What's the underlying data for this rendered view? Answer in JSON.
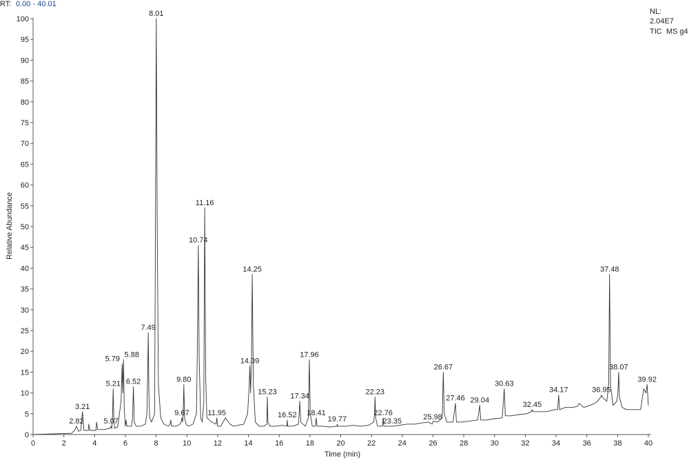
{
  "header": {
    "rt_label": "RT:",
    "rt_range": "0.00 - 40.01",
    "nl_label": "NL:",
    "nl_value": "2.04E7",
    "scan_filter": "TIC  MS g4"
  },
  "chart_data": {
    "type": "line",
    "title": "",
    "xlabel": "Time (min)",
    "ylabel": "Relative Abundance",
    "xlim": [
      0,
      40
    ],
    "ylim": [
      0,
      100
    ],
    "x_ticks": [
      0,
      2,
      4,
      6,
      8,
      10,
      12,
      14,
      16,
      18,
      20,
      22,
      24,
      26,
      28,
      30,
      32,
      34,
      36,
      38,
      40
    ],
    "y_ticks": [
      0,
      5,
      10,
      15,
      20,
      25,
      30,
      35,
      40,
      45,
      50,
      55,
      60,
      65,
      70,
      75,
      80,
      85,
      90,
      95,
      100
    ],
    "x_tick_labels": [
      "0",
      "2",
      "4",
      "6",
      "8",
      "10",
      "12",
      "14",
      "16",
      "18",
      "20",
      "22",
      "24",
      "26",
      "28",
      "30",
      "32",
      "34",
      "36",
      "38",
      "40"
    ],
    "y_tick_labels": [
      "0",
      "5",
      "10",
      "15",
      "20",
      "25",
      "30",
      "35",
      "40",
      "45",
      "50",
      "55",
      "60",
      "65",
      "70",
      "75",
      "80",
      "85",
      "90",
      "95",
      "100"
    ],
    "grid": false,
    "peaks": [
      {
        "rt": 2.82,
        "label": "2.82",
        "height": 2
      },
      {
        "rt": 3.21,
        "label": "3.21",
        "height": 5.5
      },
      {
        "rt": 5.07,
        "label": "5.07",
        "height": 2
      },
      {
        "rt": 5.21,
        "label": "5.21",
        "height": 11
      },
      {
        "rt": 5.79,
        "label": "5.79",
        "height": 17
      },
      {
        "rt": 5.88,
        "label": "5.88",
        "height": 18
      },
      {
        "rt": 6.52,
        "label": "6.52",
        "height": 11.5
      },
      {
        "rt": 7.49,
        "label": "7.49",
        "height": 24.5
      },
      {
        "rt": 8.01,
        "label": "8.01",
        "height": 100
      },
      {
        "rt": 9.67,
        "label": "9.67",
        "height": 4
      },
      {
        "rt": 9.8,
        "label": "9.80",
        "height": 12
      },
      {
        "rt": 10.74,
        "label": "10.74",
        "height": 45.5
      },
      {
        "rt": 11.16,
        "label": "11.16",
        "height": 54.5
      },
      {
        "rt": 11.95,
        "label": "11.95",
        "height": 4
      },
      {
        "rt": 14.09,
        "label": "14.09",
        "height": 16.5
      },
      {
        "rt": 14.25,
        "label": "14.25",
        "height": 38.5
      },
      {
        "rt": 15.23,
        "label": "15.23",
        "height": 9
      },
      {
        "rt": 16.52,
        "label": "16.52",
        "height": 3.5
      },
      {
        "rt": 17.34,
        "label": "17.34",
        "height": 8
      },
      {
        "rt": 17.96,
        "label": "17.96",
        "height": 18
      },
      {
        "rt": 18.41,
        "label": "18.41",
        "height": 4
      },
      {
        "rt": 19.77,
        "label": "19.77",
        "height": 2.5
      },
      {
        "rt": 22.23,
        "label": "22.23",
        "height": 9
      },
      {
        "rt": 22.76,
        "label": "22.76",
        "height": 4
      },
      {
        "rt": 23.35,
        "label": "23.35",
        "height": 2
      },
      {
        "rt": 25.98,
        "label": "25.98",
        "height": 3
      },
      {
        "rt": 26.67,
        "label": "26.67",
        "height": 15
      },
      {
        "rt": 27.46,
        "label": "27.46",
        "height": 7.5
      },
      {
        "rt": 29.04,
        "label": "29.04",
        "height": 7
      },
      {
        "rt": 30.63,
        "label": "30.63",
        "height": 11
      },
      {
        "rt": 32.45,
        "label": "32.45",
        "height": 6
      },
      {
        "rt": 34.17,
        "label": "34.17",
        "height": 9.5
      },
      {
        "rt": 36.95,
        "label": "36.95",
        "height": 9.5
      },
      {
        "rt": 37.48,
        "label": "37.48",
        "height": 38.5
      },
      {
        "rt": 38.07,
        "label": "38.07",
        "height": 15
      },
      {
        "rt": 39.92,
        "label": "39.92",
        "height": 12
      }
    ],
    "series": [
      {
        "x": [
          0,
          2.5,
          2.7,
          2.82,
          2.95,
          3.1,
          3.21,
          3.3,
          3.6,
          3.62,
          3.7,
          4.1,
          4.12,
          4.2,
          4.6,
          5.0,
          5.07,
          5.12,
          5.17,
          5.21,
          5.25,
          5.3,
          5.5,
          5.72,
          5.79,
          5.83,
          5.88,
          5.93,
          6.0,
          6.05,
          6.1,
          6.4,
          6.47,
          6.52,
          6.58,
          6.7,
          7.0,
          7.3,
          7.4,
          7.45,
          7.49,
          7.53,
          7.58,
          7.7,
          7.9,
          7.95,
          8.01,
          8.07,
          8.15,
          8.3,
          8.5,
          8.8,
          8.9,
          8.95,
          9.0,
          9.3,
          9.55,
          9.62,
          9.67,
          9.72,
          9.76,
          9.8,
          9.85,
          9.95,
          10.1,
          10.4,
          10.62,
          10.68,
          10.74,
          10.8,
          10.9,
          11.0,
          11.1,
          11.16,
          11.22,
          11.3,
          11.6,
          11.9,
          11.95,
          12.0,
          12.2,
          12.5,
          12.7,
          12.8,
          13.0,
          13.3,
          13.7,
          13.95,
          14.05,
          14.09,
          14.14,
          14.2,
          14.25,
          14.32,
          14.45,
          14.7,
          15.0,
          15.2,
          15.23,
          15.27,
          15.4,
          15.8,
          16.2,
          16.5,
          16.52,
          16.56,
          16.9,
          17.25,
          17.3,
          17.34,
          17.4,
          17.7,
          17.9,
          17.96,
          18.02,
          18.15,
          18.35,
          18.41,
          18.46,
          18.8,
          19.3,
          19.75,
          19.77,
          19.8,
          20.3,
          20.8,
          21.3,
          21.8,
          22.15,
          22.2,
          22.23,
          22.27,
          22.4,
          22.7,
          22.76,
          22.8,
          23.1,
          23.33,
          23.35,
          23.38,
          23.8,
          24.3,
          24.8,
          25.3,
          25.7,
          25.95,
          25.98,
          26.02,
          26.3,
          26.6,
          26.67,
          26.73,
          26.9,
          27.3,
          27.46,
          27.52,
          27.8,
          28.3,
          28.9,
          29.04,
          29.1,
          29.5,
          30.0,
          30.5,
          30.63,
          30.7,
          31.1,
          31.6,
          32.1,
          32.4,
          32.45,
          32.5,
          32.9,
          33.4,
          33.9,
          34.1,
          34.17,
          34.23,
          34.6,
          35.1,
          35.4,
          35.5,
          35.8,
          36.2,
          36.5,
          36.7,
          36.9,
          36.95,
          37.0,
          37.3,
          37.42,
          37.48,
          37.54,
          37.7,
          37.95,
          38.02,
          38.07,
          38.12,
          38.3,
          38.6,
          38.9,
          39.2,
          39.5,
          39.7,
          39.85,
          39.92,
          40.0
        ],
        "y": [
          0,
          0.3,
          1.0,
          2.0,
          0.8,
          1.0,
          5.5,
          1.0,
          1.0,
          2.5,
          1.0,
          1.0,
          3.0,
          1.2,
          1.2,
          1.5,
          2.0,
          1.4,
          5.0,
          11.0,
          4.0,
          1.5,
          1.8,
          8.0,
          17.0,
          10.0,
          18.0,
          6.0,
          2.0,
          3.5,
          2.0,
          2.0,
          4.0,
          11.5,
          3.0,
          2.0,
          2.0,
          2.5,
          5.0,
          14.0,
          24.5,
          10.0,
          4.0,
          3.0,
          5.0,
          45.0,
          100.0,
          50.0,
          12.0,
          4.0,
          2.5,
          2.0,
          2.5,
          3.5,
          2.0,
          2.0,
          2.5,
          3.0,
          4.0,
          3.0,
          5.0,
          12.0,
          4.0,
          2.5,
          2.0,
          2.5,
          5.0,
          20.0,
          45.5,
          18.0,
          4.0,
          3.0,
          8.0,
          54.5,
          14.0,
          4.0,
          3.0,
          2.5,
          4.0,
          2.0,
          2.0,
          4.0,
          3.0,
          2.5,
          2.0,
          2.2,
          2.5,
          5.0,
          12.0,
          16.5,
          10.0,
          18.0,
          38.5,
          12.0,
          3.0,
          2.0,
          2.0,
          2.5,
          9.0,
          3.0,
          2.0,
          2.0,
          2.2,
          2.0,
          3.5,
          2.0,
          2.0,
          2.5,
          5.0,
          8.0,
          3.0,
          2.0,
          4.0,
          18.0,
          5.0,
          2.0,
          2.0,
          4.0,
          2.0,
          2.0,
          1.8,
          2.0,
          2.5,
          2.0,
          2.0,
          2.2,
          2.0,
          2.2,
          3.0,
          5.0,
          9.0,
          4.0,
          2.0,
          2.0,
          4.0,
          2.0,
          2.0,
          2.0,
          2.0,
          2.0,
          2.2,
          2.5,
          2.5,
          2.8,
          3.0,
          2.5,
          3.0,
          3.2,
          3.0,
          4.0,
          15.0,
          5.0,
          3.0,
          3.0,
          7.5,
          3.0,
          3.0,
          3.2,
          3.5,
          7.0,
          3.5,
          3.5,
          3.8,
          4.0,
          11.0,
          4.5,
          4.5,
          4.8,
          5.0,
          5.5,
          6.0,
          5.5,
          5.5,
          5.5,
          6.0,
          6.0,
          9.5,
          6.0,
          6.5,
          6.5,
          6.8,
          7.5,
          6.5,
          7.0,
          7.5,
          8.0,
          9.0,
          9.5,
          9.0,
          8.0,
          12.0,
          38.5,
          12.0,
          7.0,
          8.0,
          10.0,
          15.0,
          9.0,
          6.5,
          6.0,
          6.0,
          6.0,
          6.0,
          11.0,
          10.0,
          12.0,
          7.0
        ]
      }
    ]
  }
}
